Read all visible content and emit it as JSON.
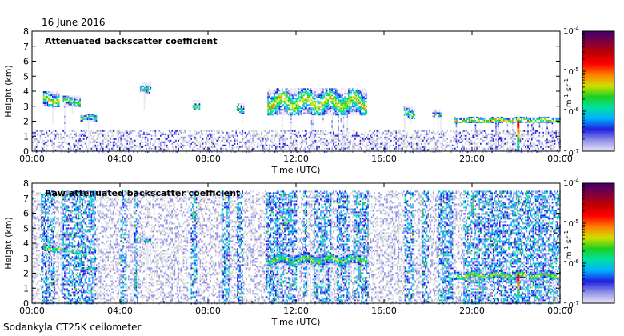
{
  "date": "16 June 2016",
  "footer": "Sodankyla CT25K ceilometer",
  "colors": {
    "colorbar": [
      "#e8e8f4",
      "#9090e8",
      "#2020e0",
      "#00b0ff",
      "#00e0a0",
      "#20d020",
      "#d0e000",
      "#ff8000",
      "#ff0000",
      "#c00000",
      "#800040",
      "#40006a"
    ],
    "gap": "#d4d4d4"
  },
  "chart_data": [
    {
      "type": "heatmap",
      "title": "Attenuated backscatter coefficient",
      "xlabel": "Time (UTC)",
      "ylabel": "Height (km)",
      "xlim": [
        0,
        24
      ],
      "ylim": [
        0,
        8
      ],
      "x_ticks": [
        0,
        4,
        8,
        12,
        16,
        20,
        24
      ],
      "x_tick_labels": [
        "00:00",
        "04:00",
        "08:00",
        "12:00",
        "16:00",
        "20:00",
        "00:00"
      ],
      "y_ticks": [
        0,
        1,
        2,
        3,
        4,
        5,
        6,
        7,
        8
      ],
      "y_tick_labels": [
        "0",
        "1",
        "2",
        "3",
        "4",
        "5",
        "6",
        "7",
        "8"
      ],
      "colorbar": {
        "scale": "log",
        "range": [
          1e-07,
          0.0001
        ],
        "tick_labels": [
          "10^-7",
          "10^-6",
          "10^-5",
          "10^-4"
        ],
        "label": "m^-1 sr^-1"
      },
      "features": [
        {
          "time": [
            0.5,
            1.2
          ],
          "height": [
            3.0,
            4.0
          ],
          "peak_log10": -5.0
        },
        {
          "time": [
            1.4,
            2.2
          ],
          "height": [
            3.0,
            3.7
          ],
          "peak_log10": -5.2
        },
        {
          "time": [
            2.2,
            2.9
          ],
          "height": [
            2.0,
            2.5
          ],
          "peak_log10": -5.3
        },
        {
          "time": [
            4.9,
            5.4
          ],
          "height": [
            3.9,
            4.6
          ],
          "peak_log10": -5.5
        },
        {
          "time": [
            7.3,
            7.6
          ],
          "height": [
            2.8,
            3.4
          ],
          "peak_log10": -5.2
        },
        {
          "time": [
            9.3,
            9.6
          ],
          "height": [
            2.5,
            3.2
          ],
          "peak_log10": -5.3
        },
        {
          "time": [
            10.7,
            15.2
          ],
          "height": [
            2.4,
            4.2
          ],
          "peak_log10": -5.0
        },
        {
          "time": [
            16.9,
            17.4
          ],
          "height": [
            2.2,
            3.0
          ],
          "peak_log10": -5.2
        },
        {
          "time": [
            18.2,
            18.6
          ],
          "height": [
            2.3,
            2.8
          ],
          "peak_log10": -5.4
        },
        {
          "time": [
            19.2,
            24.0
          ],
          "height": [
            1.9,
            2.3
          ],
          "peak_log10": -4.9
        }
      ],
      "rainbow_column": {
        "time": 22.1,
        "height": [
          0.0,
          2.0
        ]
      }
    },
    {
      "type": "heatmap",
      "title": "Raw attenuated backscatter coefficient",
      "xlabel": "Time (UTC)",
      "ylabel": "Height (km)",
      "xlim": [
        0,
        24
      ],
      "ylim": [
        0,
        8
      ],
      "x_ticks": [
        0,
        4,
        8,
        12,
        16,
        20,
        24
      ],
      "x_tick_labels": [
        "00:00",
        "04:00",
        "08:00",
        "12:00",
        "16:00",
        "20:00",
        "00:00"
      ],
      "y_ticks": [
        0,
        1,
        2,
        3,
        4,
        5,
        6,
        7,
        8
      ],
      "y_tick_labels": [
        "0",
        "1",
        "2",
        "3",
        "4",
        "5",
        "6",
        "7",
        "8"
      ],
      "colorbar": {
        "scale": "log",
        "range": [
          1e-07,
          0.0001
        ],
        "tick_labels": [
          "10^-7",
          "10^-6",
          "10^-5",
          "10^-4"
        ],
        "label": "m^-1 sr^-1"
      },
      "noise_bands": [
        [
          0.4,
          1.0
        ],
        [
          1.3,
          2.9
        ],
        [
          4.0,
          4.3
        ],
        [
          4.6,
          4.8
        ],
        [
          7.2,
          7.5
        ],
        [
          8.6,
          9.0
        ],
        [
          9.3,
          9.6
        ],
        [
          10.6,
          12.0
        ],
        [
          12.3,
          12.5
        ],
        [
          12.8,
          13.6
        ],
        [
          13.8,
          14.4
        ],
        [
          14.6,
          15.3
        ],
        [
          16.9,
          17.3
        ],
        [
          17.7,
          18.0
        ],
        [
          18.4,
          19.1
        ],
        [
          19.6,
          24.0
        ]
      ],
      "features": [
        {
          "time": [
            0.5,
            1.2
          ],
          "height": [
            3.4,
            4.0
          ],
          "peak_log10": -5.2
        },
        {
          "time": [
            1.4,
            2.2
          ],
          "height": [
            3.3,
            3.7
          ],
          "peak_log10": -5.3
        },
        {
          "time": [
            2.2,
            2.9
          ],
          "height": [
            2.1,
            2.5
          ],
          "peak_log10": -5.4
        },
        {
          "time": [
            4.9,
            5.4
          ],
          "height": [
            4.0,
            4.5
          ],
          "peak_log10": -5.5
        },
        {
          "time": [
            10.7,
            15.2
          ],
          "height": [
            2.5,
            3.4
          ],
          "peak_log10": -5.2
        },
        {
          "time": [
            19.2,
            24.0
          ],
          "height": [
            1.6,
            2.2
          ],
          "peak_log10": -5.0
        }
      ],
      "rainbow_column": {
        "time": 22.1,
        "height": [
          0.0,
          1.9
        ]
      }
    }
  ]
}
